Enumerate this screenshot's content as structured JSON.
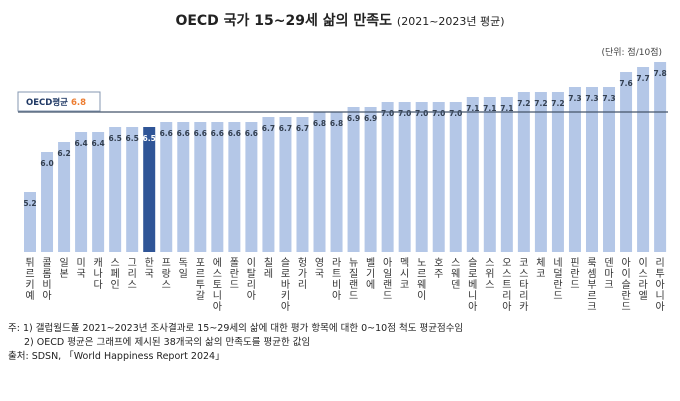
{
  "chart_data": {
    "type": "bar",
    "title": "OECD 국가 15~29세 삶의 만족도",
    "subtitle": "(2021~2023년 평균)",
    "unit": "(단위: 점/10점)",
    "ylim": [
      4.0,
      8.0
    ],
    "grid": false,
    "categories": [
      "튀르키예",
      "콜롬비아",
      "일본",
      "미국",
      "캐나다",
      "스페인",
      "그리스",
      "한국",
      "프랑스",
      "독일",
      "포르투갈",
      "에스토니아",
      "폴란드",
      "이탈리아",
      "칠레",
      "슬로바키아",
      "헝가리",
      "영국",
      "라트비아",
      "뉴질랜드",
      "벨기에",
      "아일랜드",
      "멕시코",
      "노르웨이",
      "호주",
      "스웨덴",
      "슬로베니아",
      "스위스",
      "오스트리아",
      "코스타리카",
      "체코",
      "네덜란드",
      "핀란드",
      "룩셈부르크",
      "덴마크",
      "아이슬란드",
      "이스라엘",
      "리투아니아"
    ],
    "values": [
      5.2,
      6.0,
      6.2,
      6.4,
      6.4,
      6.5,
      6.5,
      6.5,
      6.6,
      6.6,
      6.6,
      6.6,
      6.6,
      6.6,
      6.7,
      6.7,
      6.7,
      6.8,
      6.8,
      6.9,
      6.9,
      7.0,
      7.0,
      7.0,
      7.0,
      7.0,
      7.1,
      7.1,
      7.1,
      7.2,
      7.2,
      7.2,
      7.3,
      7.3,
      7.3,
      7.6,
      7.7,
      7.8
    ],
    "highlight": "한국",
    "reference_line": {
      "label": "OECD평균",
      "value": 6.8
    },
    "colors": {
      "bar": "#b4c7e7",
      "highlight": "#2f5597",
      "line": "#44546a",
      "ref_value": "#ed7d31",
      "label": "#333f50"
    }
  },
  "notes": [
    "주: 1) 갤럽월드폴 2021~2023년 조사결과로 15~29세의 삶에 대한 평가 항목에 대한 0~10점 척도 평균점수임",
    "2) OECD 평균은 그래프에 제시된 38개국의 삶의 만족도를 평균한 값임",
    "출처: SDSN, 「World Happiness Report 2024」"
  ]
}
